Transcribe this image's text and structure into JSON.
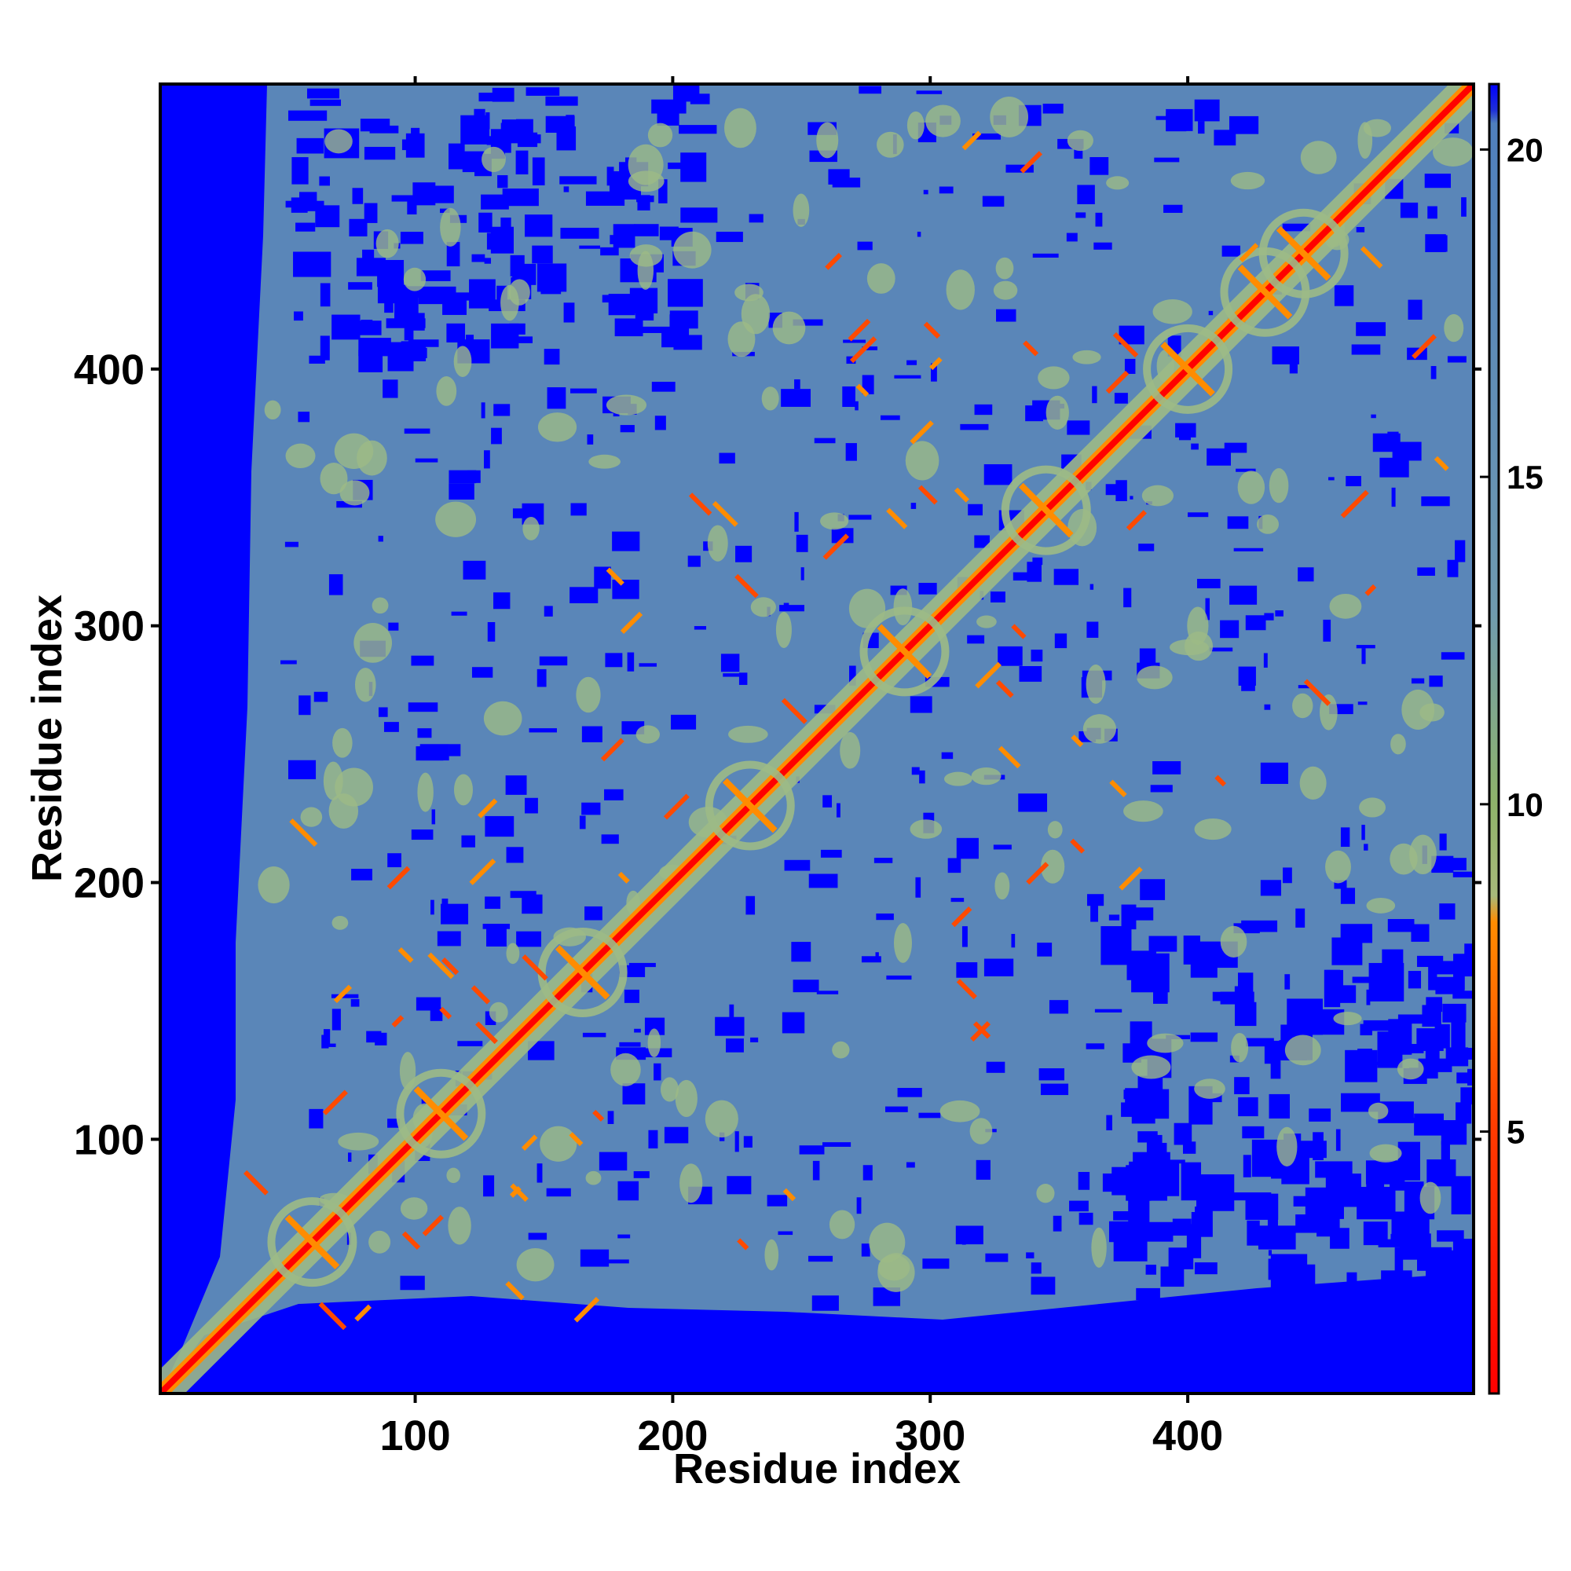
{
  "chart_data": {
    "type": "heatmap",
    "title": "",
    "xlabel": "Residue index",
    "ylabel": "Residue index",
    "xlim": [
      1,
      511
    ],
    "ylim": [
      1,
      511
    ],
    "x_ticks": [
      100,
      200,
      300,
      400
    ],
    "y_ticks": [
      100,
      200,
      300,
      400
    ],
    "colorbar": {
      "range": [
        1,
        21
      ],
      "ticks": [
        5,
        10,
        15,
        20
      ],
      "colors": [
        "#ff0000",
        "#ff8c00",
        "#8fb36a",
        "#5a86b8",
        "#0000ff"
      ],
      "stops": [
        1,
        8,
        9,
        10,
        21
      ]
    },
    "grid": false,
    "legend": "colorbar-right",
    "colors": {
      "near": "#ff0000",
      "contact": "#ff8c00",
      "medium": "#9cba86",
      "background": "#5a86b8",
      "far": "#0000ff"
    }
  }
}
